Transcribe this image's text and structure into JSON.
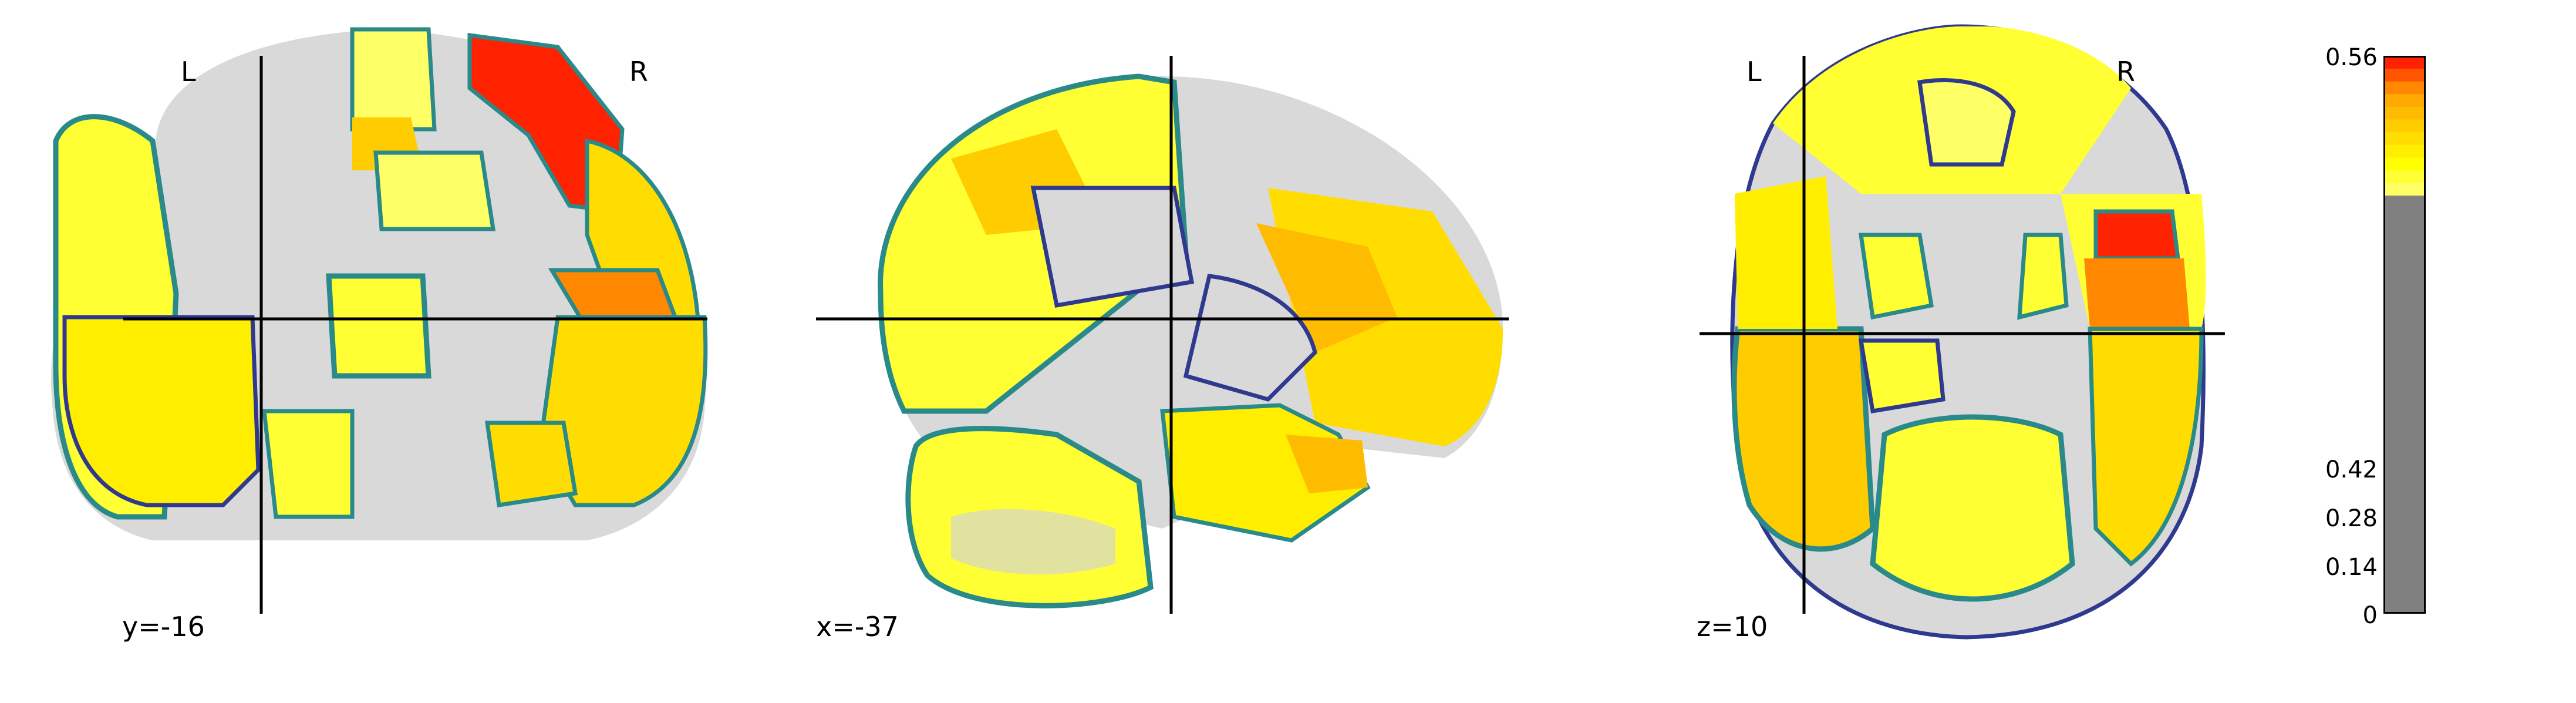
{
  "views": [
    {
      "id": "coronal",
      "coord_label": "y=-16",
      "left_label": "L",
      "right_label": "R"
    },
    {
      "id": "sagittal",
      "coord_label": "x=-37"
    },
    {
      "id": "axial",
      "coord_label": "z=10",
      "left_label": "L",
      "right_label": "R"
    }
  ],
  "colorbar": {
    "ticks": [
      "0.56",
      "0.42",
      "0.28",
      "0.14",
      "0"
    ],
    "threshold_fraction": 0.75,
    "colors": {
      "below_threshold": "#808080",
      "steps": [
        "#ffff66",
        "#ffff33",
        "#ffff00",
        "#ffee00",
        "#ffdd00",
        "#ffcc00",
        "#ffbb00",
        "#ffaa00",
        "#ff8800",
        "#ff5500",
        "#ff2200"
      ]
    }
  },
  "colors": {
    "contour_dark": "#2f3a8f",
    "contour_teal": "#2a8a8a",
    "crosshair": "#000000",
    "brain_gray": "#d8d8d8"
  }
}
